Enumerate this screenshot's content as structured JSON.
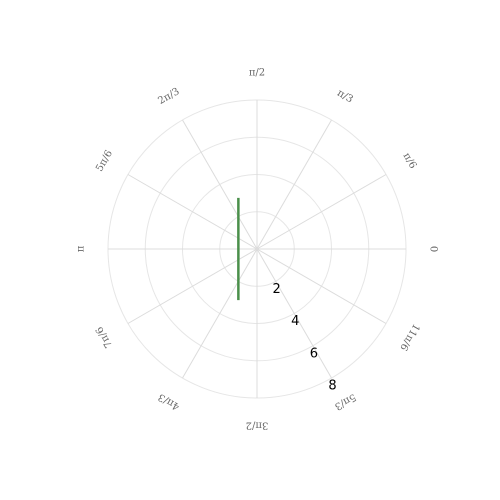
{
  "chart_data": {
    "type": "line",
    "projection": "polar",
    "title": "",
    "grid": true,
    "angle_ticks": [
      {
        "label": "0",
        "angle_deg": 0
      },
      {
        "label": "π/6",
        "angle_deg": 30
      },
      {
        "label": "π/3",
        "angle_deg": 60
      },
      {
        "label": "π/2",
        "angle_deg": 90
      },
      {
        "label": "2π/3",
        "angle_deg": 120
      },
      {
        "label": "5π/6",
        "angle_deg": 150
      },
      {
        "label": "π",
        "angle_deg": 180
      },
      {
        "label": "7π/6",
        "angle_deg": 210
      },
      {
        "label": "4π/3",
        "angle_deg": 240
      },
      {
        "label": "3π/2",
        "angle_deg": 270
      },
      {
        "label": "5π/3",
        "angle_deg": 300
      },
      {
        "label": "11π/6",
        "angle_deg": 330
      }
    ],
    "radial_ticks": [
      "2",
      "4",
      "6",
      "8"
    ],
    "radial_tick_values": [
      2,
      4,
      6,
      8
    ],
    "radial_label_angle_deg": -60,
    "rlim": [
      0,
      8
    ],
    "series": [
      {
        "color": "#4a8f4a",
        "description_equation": "r = -1 / cos(theta)",
        "theta_deg": [
          110,
          120,
          130,
          140,
          150,
          160,
          170,
          180,
          190,
          200,
          210,
          220,
          230,
          240,
          250
        ],
        "r": [
          2.924,
          2.0,
          1.556,
          1.305,
          1.155,
          1.064,
          1.015,
          1.0,
          1.015,
          1.064,
          1.155,
          1.305,
          1.556,
          2.0,
          2.924
        ]
      }
    ]
  }
}
